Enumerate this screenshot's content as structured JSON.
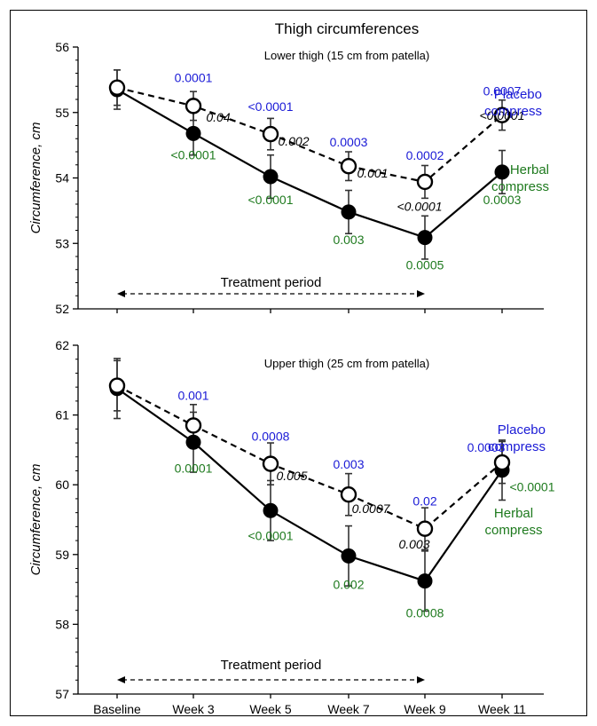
{
  "colors": {
    "placebo": "#1a1ad6",
    "herbal": "#1e7a1e",
    "axis": "#000000"
  },
  "chart_data": [
    {
      "type": "line",
      "title": "Thigh circumferences",
      "subtitle": "Lower thigh  (15 cm from patella)",
      "ylabel": "Circumference, cm",
      "ylim": [
        52,
        56
      ],
      "yticks": [
        52,
        53,
        54,
        55,
        56
      ],
      "ytick_labels": [
        "52",
        "53",
        "54",
        "55",
        "56"
      ],
      "categories": [
        "Baseline",
        "Week 3",
        "Week 5",
        "Week 7",
        "Week 9",
        "Week 11"
      ],
      "series": [
        {
          "name": "Placebo compress",
          "legend": [
            "Placebo",
            "compress"
          ],
          "marker": "open-circle",
          "line": "dashed",
          "values": [
            55.38,
            55.1,
            54.67,
            54.18,
            53.94,
            54.96
          ],
          "err": [
            0.27,
            0.22,
            0.24,
            0.22,
            0.25,
            0.23
          ],
          "pvalues": [
            "",
            "0.0001",
            "<0.0001",
            "0.0003",
            "0.0002",
            "0.0007"
          ]
        },
        {
          "name": "Herbal compress",
          "legend": [
            "Herbal",
            "compress"
          ],
          "marker": "filled-circle",
          "line": "solid",
          "values": [
            55.35,
            54.68,
            54.02,
            53.48,
            53.09,
            54.09
          ],
          "err": [
            0.3,
            0.33,
            0.33,
            0.33,
            0.33,
            0.33
          ],
          "pvalues": [
            "",
            "<0.0001",
            "<0.0001",
            "0.003",
            "0.0005",
            "0.0003"
          ]
        }
      ],
      "between_pvalues": [
        "",
        "0.04",
        "0.002",
        "0.001",
        "<0.0001",
        "<0.0001"
      ],
      "annotation": "Treatment period",
      "treatment_span": [
        "Baseline",
        "Week 9"
      ]
    },
    {
      "type": "line",
      "subtitle": "Upper thigh  (25 cm from patella)",
      "ylabel": "Circumference, cm",
      "ylim": [
        57,
        62
      ],
      "yticks": [
        57,
        58,
        59,
        60,
        61,
        62
      ],
      "ytick_labels": [
        "57",
        "58",
        "59",
        "60",
        "61",
        "62"
      ],
      "categories": [
        "Baseline",
        "Week 3",
        "Week 5",
        "Week 7",
        "Week 9",
        "Week 11"
      ],
      "series": [
        {
          "name": "Placebo compress",
          "legend": [
            "Placebo",
            "compress"
          ],
          "marker": "open-circle",
          "line": "dashed",
          "values": [
            61.42,
            60.85,
            60.3,
            59.86,
            59.37,
            60.32
          ],
          "err": [
            0.36,
            0.3,
            0.3,
            0.3,
            0.3,
            0.3
          ],
          "pvalues": [
            "",
            "0.001",
            "0.0008",
            "0.003",
            "0.02",
            "0.0003"
          ]
        },
        {
          "name": "Herbal compress",
          "legend": [
            "Herbal",
            "compress"
          ],
          "marker": "filled-circle",
          "line": "solid",
          "values": [
            61.38,
            60.61,
            59.63,
            58.98,
            58.62,
            60.21
          ],
          "err": [
            0.43,
            0.43,
            0.43,
            0.43,
            0.43,
            0.43
          ],
          "pvalues": [
            "",
            "0.0001",
            "<0.0001",
            "0.002",
            "0.0008",
            "<0.0001"
          ]
        }
      ],
      "between_pvalues": [
        "",
        "",
        "0.005",
        "0.0007",
        "0.003",
        ""
      ],
      "annotation": "Treatment period",
      "treatment_span": [
        "Baseline",
        "Week 9"
      ]
    }
  ]
}
